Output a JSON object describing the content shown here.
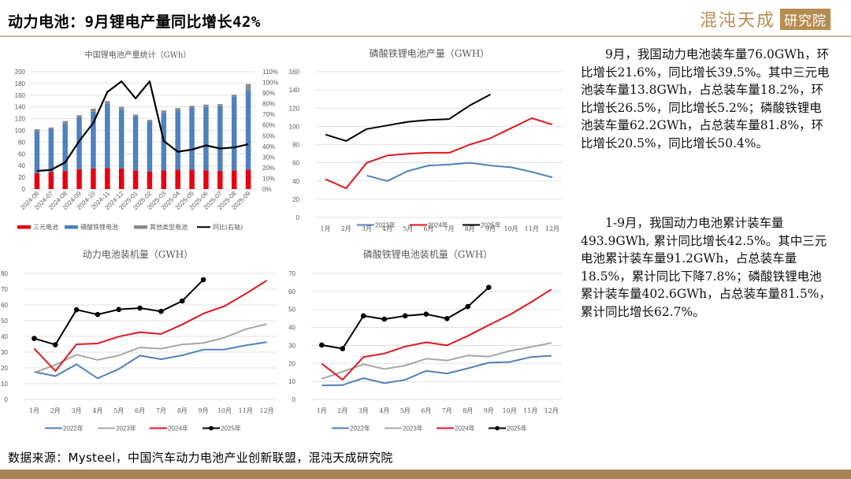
{
  "header": {
    "title": "动力电池：9月锂电产量同比增长42%",
    "logo_text": "混沌天成",
    "logo_box_text": "研究院"
  },
  "colors": {
    "ternary": "#e60012",
    "lfp": "#4f81bd",
    "other": "#8c8c8c",
    "yoy": "#000000",
    "y2022": "#4f81bd",
    "y2023": "#a6a6a6",
    "y2024": "#e0161c",
    "y2025": "#000000",
    "brand": "#b68c52"
  },
  "chart_data": [
    {
      "type": "bar",
      "stacked": true,
      "title": "中国锂电池产量统计（GWh）",
      "categories": [
        "2024-06",
        "2024-07",
        "2024-08",
        "2024-09",
        "2024-10",
        "2024-11",
        "2024-12",
        "2025-01",
        "2025-02",
        "2025-03",
        "2025-04",
        "2025-05",
        "2025-06",
        "2025-07",
        "2025-08",
        "2025-09"
      ],
      "series": [
        {
          "name": "三元电池",
          "values": [
            27,
            29,
            31,
            34,
            35,
            36,
            35,
            32,
            30,
            32,
            33,
            33,
            32,
            31,
            32,
            33
          ]
        },
        {
          "name": "磷酸铁锂电池",
          "values": [
            72,
            73,
            80,
            89,
            97,
            110,
            101,
            92,
            85,
            98,
            101,
            106,
            108,
            110,
            126,
            136
          ]
        },
        {
          "name": "其他类型电池",
          "values": [
            3,
            3,
            5,
            3,
            5,
            4,
            4,
            3,
            3,
            4,
            4,
            3,
            4,
            4,
            3,
            10
          ]
        },
        {
          "name": "同比(右轴)",
          "axis": "right",
          "type": "line",
          "values": [
            17,
            18,
            25,
            45,
            62,
            91,
            101,
            85,
            101,
            45,
            35,
            37,
            41,
            38,
            39,
            42
          ]
        }
      ],
      "ylim": [
        0,
        200
      ],
      "yticks": [
        "0",
        "20",
        "40",
        "60",
        "80",
        "100",
        "120",
        "140",
        "160",
        "180",
        "200"
      ],
      "y2lim": [
        0,
        110
      ],
      "y2ticks": [
        "0%",
        "10%",
        "20%",
        "30%",
        "40%",
        "50%",
        "60%",
        "70%",
        "80%",
        "90%",
        "100%",
        "110%"
      ],
      "legend": "bottom",
      "grid": true
    },
    {
      "type": "line",
      "title": "磷酸铁锂电池产量（GWH）",
      "categories": [
        "1月",
        "2月",
        "3月",
        "4月",
        "5月",
        "6月",
        "7月",
        "8月",
        "9月",
        "10月",
        "11月",
        "12月"
      ],
      "series": [
        {
          "name": "2023年",
          "values": [
            null,
            null,
            46,
            40,
            51,
            57,
            58,
            60,
            57,
            55,
            50,
            44
          ]
        },
        {
          "name": "2024年",
          "values": [
            42,
            32,
            60,
            68,
            70,
            71,
            71,
            80,
            87,
            98,
            109,
            102
          ]
        },
        {
          "name": "2025年",
          "values": [
            91,
            84,
            97,
            101,
            105,
            107,
            108,
            123,
            135,
            null,
            null,
            null
          ]
        }
      ],
      "ylim": [
        0,
        160
      ],
      "yticks": [
        "0",
        "20",
        "40",
        "60",
        "80",
        "100",
        "120",
        "140",
        "160"
      ],
      "legend": "bottom",
      "grid": true
    },
    {
      "type": "line",
      "title": "动力电池装机量（GWH）",
      "categories": [
        "1月",
        "2月",
        "3月",
        "4月",
        "5月",
        "6月",
        "7月",
        "8月",
        "9月",
        "10月",
        "11月",
        "12月"
      ],
      "series": [
        {
          "name": "2022年",
          "values": [
            17.5,
            14.8,
            22.3,
            13.4,
            19.3,
            27.8,
            25.5,
            28.0,
            31.6,
            31.7,
            34.3,
            36.4
          ]
        },
        {
          "name": "2023年",
          "values": [
            17.0,
            21.9,
            28.4,
            25.1,
            27.9,
            33.0,
            32.2,
            34.9,
            35.8,
            39.2,
            44.6,
            47.9
          ]
        },
        {
          "name": "2024年",
          "values": [
            32.3,
            18.0,
            35.0,
            35.5,
            39.9,
            42.7,
            41.5,
            47.6,
            54.5,
            59.2,
            67.1,
            75.5
          ]
        },
        {
          "name": "2025年",
          "values": [
            38.7,
            34.7,
            56.9,
            53.9,
            57.1,
            58.0,
            55.9,
            62.5,
            76.0,
            null,
            null,
            null
          ],
          "markers": true
        }
      ],
      "ylim": [
        0,
        80
      ],
      "yticks": [
        "0",
        "10",
        "20",
        "30",
        "40",
        "50",
        "60",
        "70",
        "80"
      ],
      "legend": "bottom",
      "grid": true
    },
    {
      "type": "line",
      "title": "磷酸铁锂电池装机量（GWH）",
      "categories": [
        "1月",
        "2月",
        "3月",
        "4月",
        "5月",
        "6月",
        "7月",
        "8月",
        "9月",
        "10月",
        "11月",
        "12月"
      ],
      "series": [
        {
          "name": "2022年",
          "values": [
            7.8,
            8.0,
            11.8,
            9.0,
            10.9,
            15.9,
            14.4,
            17.3,
            20.4,
            20.8,
            23.5,
            24.3
          ]
        },
        {
          "name": "2023年",
          "values": [
            11.4,
            15.4,
            19.5,
            16.9,
            18.8,
            22.6,
            21.6,
            24.4,
            23.8,
            26.9,
            29.1,
            31.4
          ]
        },
        {
          "name": "2024年",
          "values": [
            19.8,
            11.0,
            23.6,
            25.5,
            29.4,
            31.7,
            30.0,
            35.3,
            41.3,
            47.0,
            53.8,
            61.1
          ]
        },
        {
          "name": "2025年",
          "values": [
            30.2,
            28.2,
            46.4,
            44.6,
            46.4,
            47.4,
            44.9,
            51.6,
            62.2,
            null,
            null,
            null
          ],
          "markers": true
        }
      ],
      "ylim": [
        0,
        70
      ],
      "yticks": [
        "0",
        "10",
        "20",
        "30",
        "40",
        "50",
        "60",
        "70"
      ],
      "legend": "bottom",
      "grid": true
    }
  ],
  "commentary": {
    "para1": "9月，我国动力电池装车量76.0GWh，环比增长21.6%，同比增长39.5%。其中三元电池装车量13.8GWh，占总装车量18.2%，环比增长26.5%，同比增长5.2%；磷酸铁锂电池装车量62.2GWh，占总装车量81.8%，环比增长20.5%，同比增长50.4%。",
    "para2": "1-9月，我国动力电池累计装车量493.9GWh, 累计同比增长42.5%。其中三元电池累计装车量91.2GWh，占总装车量18.5%，累计同比下降7.8%；磷酸铁锂电池累计装车量402.6GWh，占总装车量81.5%，累计同比增长62.7%。"
  },
  "footer": {
    "source": "数据来源：Mysteel，中国汽车动力电池产业创新联盟，混沌天成研究院"
  }
}
